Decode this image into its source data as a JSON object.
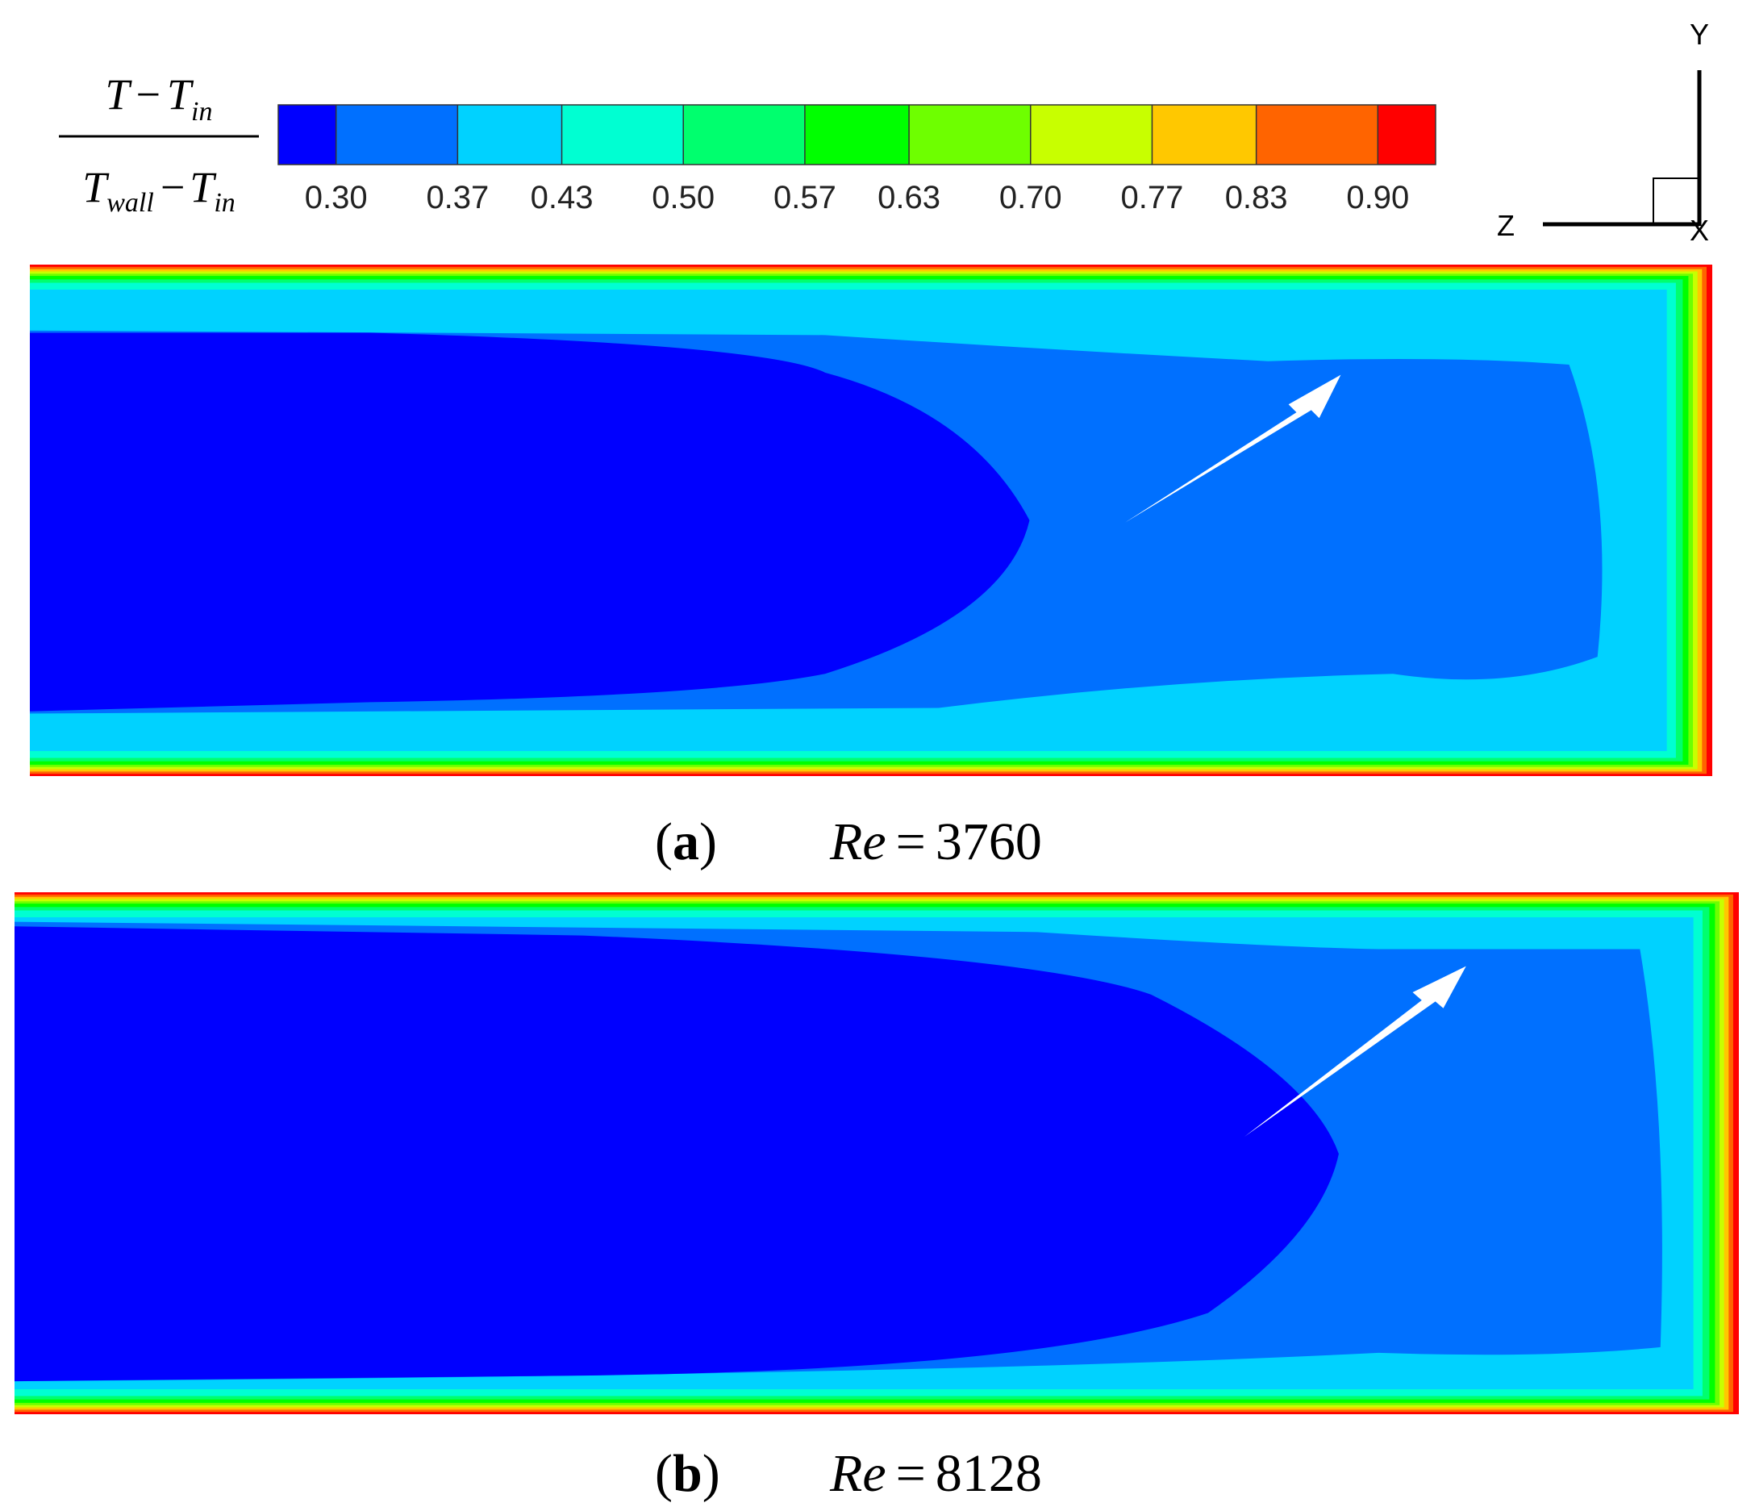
{
  "colorbar": {
    "label": {
      "numerator": [
        "T",
        "−",
        "T",
        "in"
      ],
      "denominator": [
        "T",
        "wall",
        "−",
        "T",
        "in"
      ]
    },
    "range": [
      0.2667,
      0.9333
    ],
    "ticks": [
      {
        "value": 0.3,
        "label": "0.30"
      },
      {
        "value": 0.37,
        "label": "0.37"
      },
      {
        "value": 0.43,
        "label": "0.43"
      },
      {
        "value": 0.5,
        "label": "0.50"
      },
      {
        "value": 0.57,
        "label": "0.57"
      },
      {
        "value": 0.63,
        "label": "0.63"
      },
      {
        "value": 0.7,
        "label": "0.70"
      },
      {
        "value": 0.77,
        "label": "0.77"
      },
      {
        "value": 0.83,
        "label": "0.83"
      },
      {
        "value": 0.9,
        "label": "0.90"
      }
    ],
    "colors": [
      "#0000ff",
      "#0070ff",
      "#00d2ff",
      "#00ffd2",
      "#00ff6e",
      "#00ff00",
      "#6eff00",
      "#c8ff00",
      "#ffc800",
      "#ff6400",
      "#ff0000"
    ]
  },
  "axes_triad": {
    "y": "Y",
    "z": "Z",
    "x": "X"
  },
  "panels": [
    {
      "tag": [
        "(",
        "a",
        ")"
      ],
      "caption": [
        "Re",
        "=",
        "3760"
      ]
    },
    {
      "tag": [
        "(",
        "b",
        ")"
      ],
      "caption": [
        "Re",
        "=",
        "8128"
      ]
    }
  ]
}
